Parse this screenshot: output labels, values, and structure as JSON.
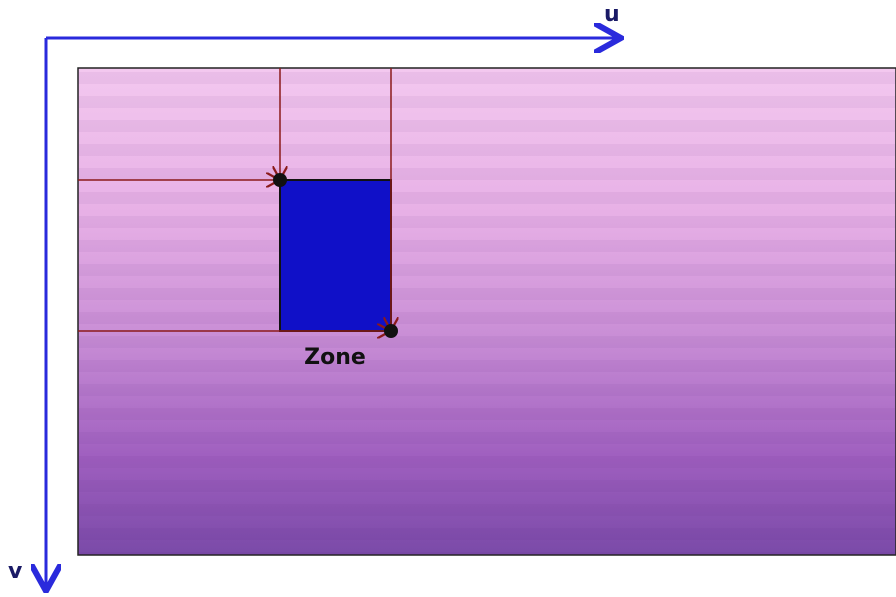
{
  "axes": {
    "u": "u",
    "v": "v"
  },
  "zone": {
    "label": "Zone"
  }
}
